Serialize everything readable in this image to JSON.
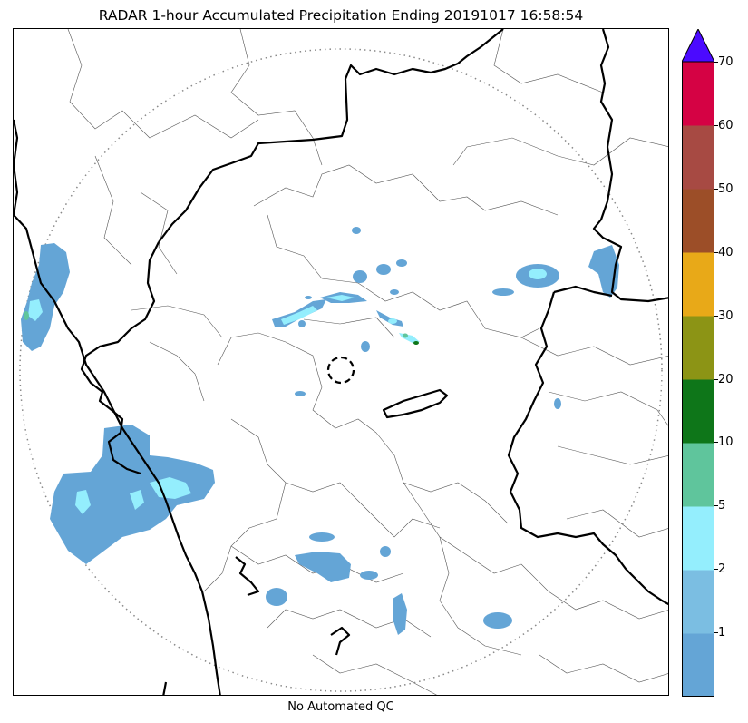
{
  "title": "RADAR 1-hour Accumulated Precipitation Ending 20191017 16:58:54",
  "caption": "No Automated QC",
  "colorbar": {
    "extend_color": "#4b0aff",
    "colors": [
      "#64a5d6",
      "#7bbee2",
      "#94eefd",
      "#5fc59c",
      "#0e7619",
      "#8c9415",
      "#e8a918",
      "#9c4e28",
      "#a74a43",
      "#d50244"
    ],
    "ticks": [
      "1",
      "2",
      "5",
      "10",
      "20",
      "30",
      "40",
      "50",
      "60",
      "70"
    ]
  },
  "map": {
    "radar_site_marker": "dashed-circle",
    "range_ring": "dotted-circle",
    "precip_colors": {
      "light": "#64a5d6",
      "moderate": "#94eefd",
      "heavy": "#5fc59c",
      "strong": "#0e7619"
    }
  }
}
